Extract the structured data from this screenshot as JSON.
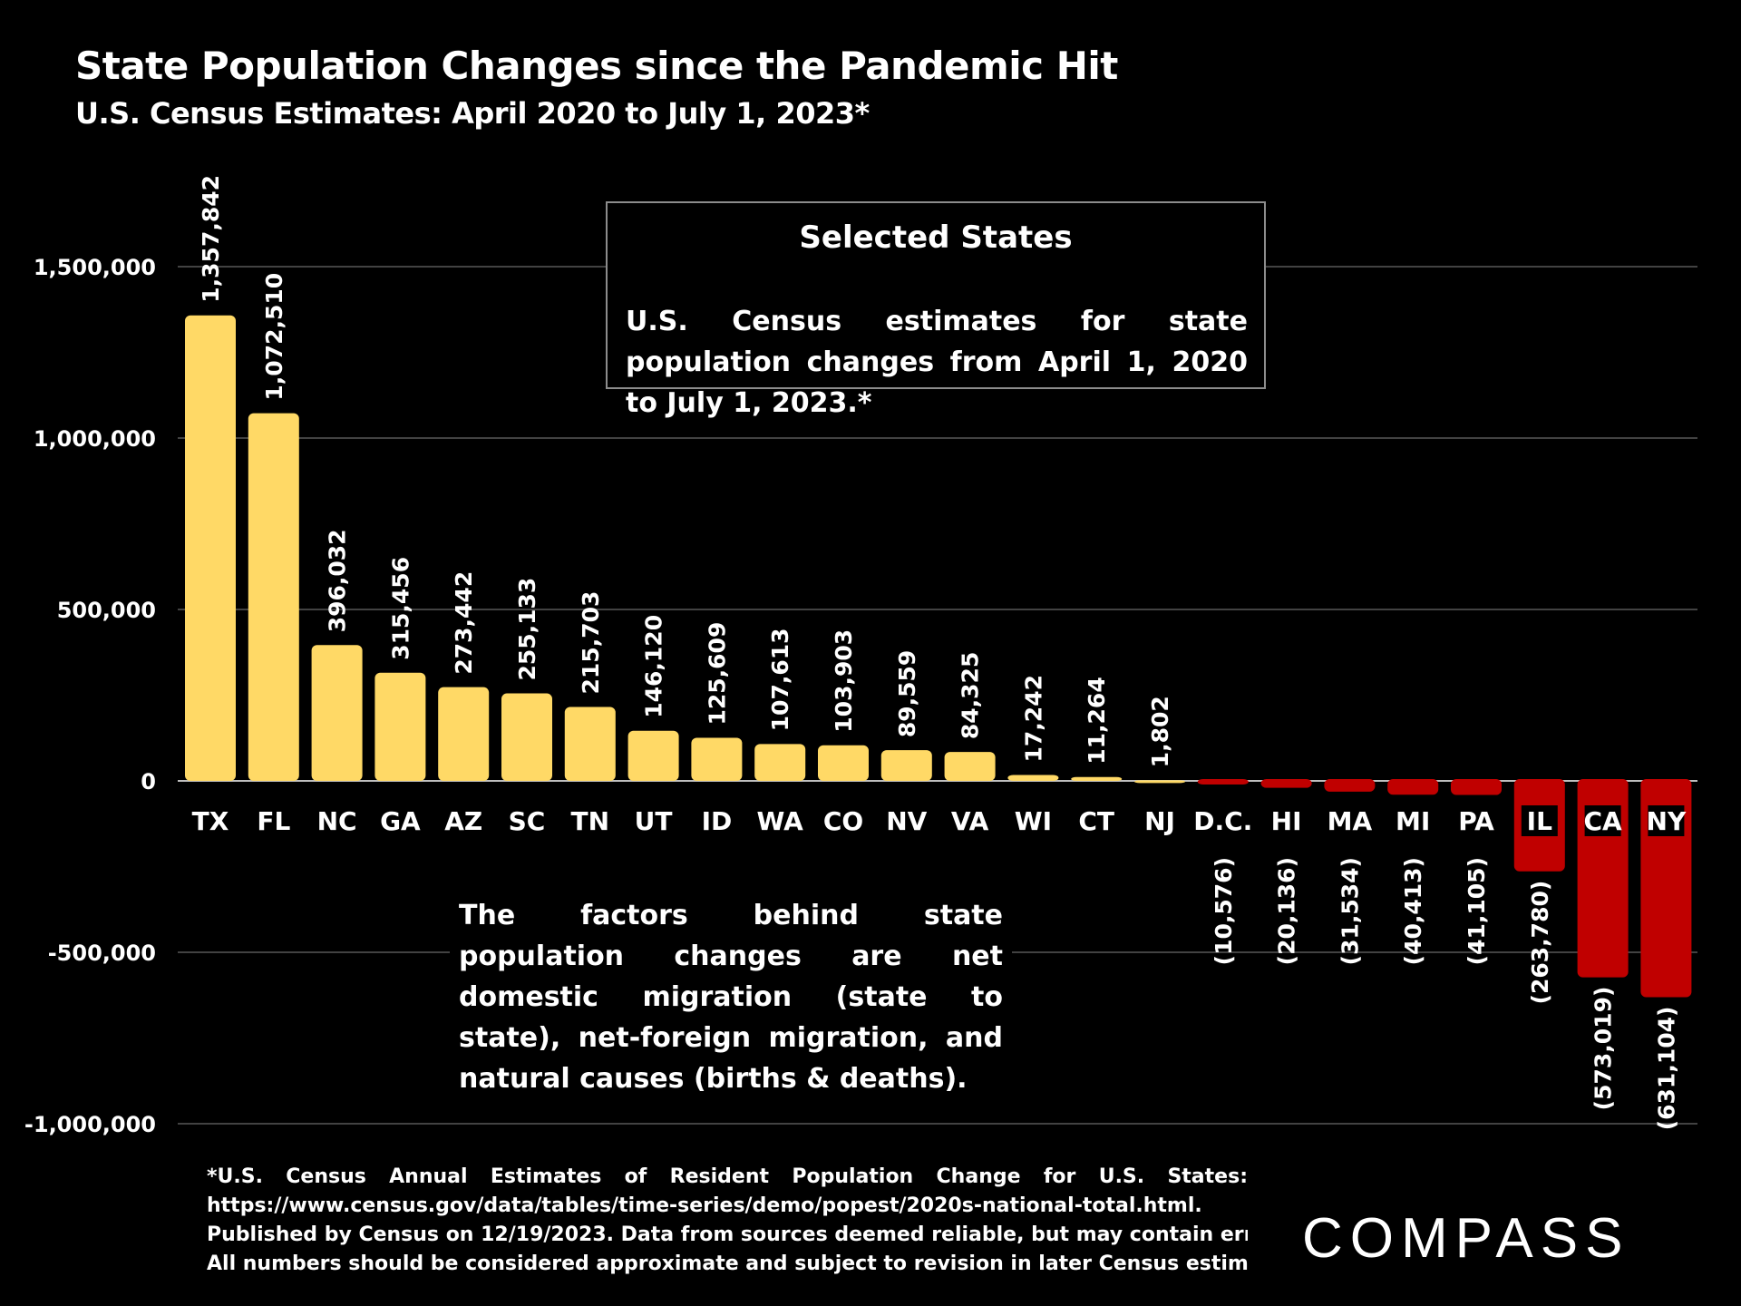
{
  "header": {
    "title": "State Population Changes since the Pandemic Hit",
    "subtitle": "U.S. Census Estimates: April 2020 to July 1, 2023*"
  },
  "callout": {
    "heading": "Selected States",
    "body": "U.S. Census estimates for state population changes from April 1, 2020 to July 1, 2023.*"
  },
  "note": "The factors behind state population changes are net domestic migration (state to state), net-foreign migration, and natural causes (births & deaths).",
  "footnote": {
    "lines": [
      "*U.S. Census Annual Estimates of Resident Population Change for U.S. States:",
      "https://www.census.gov/data/tables/time-series/demo/popest/2020s-national-total.html.",
      "Published by Census on 12/19/2023. Data from sources deemed reliable, but may contain errors.",
      "All numbers should be considered approximate and subject to revision in later Census estimates."
    ]
  },
  "logo": {
    "text": "COMPASS"
  },
  "colors": {
    "background": "#000000",
    "positive_bar": "#FFD966",
    "negative_bar": "#C00000",
    "gridline": "#595959",
    "text": "#FFFFFF"
  },
  "chart_data": {
    "type": "bar",
    "title": "State Population Changes since the Pandemic Hit",
    "subtitle": "U.S. Census Estimates: April 2020 to July 1, 2023*",
    "categories": [
      "TX",
      "FL",
      "NC",
      "GA",
      "AZ",
      "SC",
      "TN",
      "UT",
      "ID",
      "WA",
      "CO",
      "NV",
      "VA",
      "WI",
      "CT",
      "NJ",
      "D.C.",
      "HI",
      "MA",
      "MI",
      "PA",
      "IL",
      "CA",
      "NY"
    ],
    "values": [
      1357842,
      1072510,
      396032,
      315456,
      273442,
      255133,
      215703,
      146120,
      125609,
      107613,
      103903,
      89559,
      84325,
      17242,
      11264,
      1802,
      -10576,
      -20136,
      -31534,
      -40413,
      -41105,
      -263780,
      -573019,
      -631104
    ],
    "data_labels": [
      "1,357,842",
      "1,072,510",
      "396,032",
      "315,456",
      "273,442",
      "255,133",
      "215,703",
      "146,120",
      "125,609",
      "107,613",
      "103,903",
      "89,559",
      "84,325",
      "17,242",
      "11,264",
      "1,802",
      "(10,576)",
      "(20,136)",
      "(31,534)",
      "(40,413)",
      "(41,105)",
      "(263,780)",
      "(573,019)",
      "(631,104)"
    ],
    "ylim": [
      -1000000,
      1500000
    ],
    "yticks": [
      1500000,
      1000000,
      500000,
      0,
      -500000,
      -1000000
    ],
    "ytick_labels": [
      "1,500,000",
      "1,000,000",
      "500,000",
      "0",
      "-500,000",
      "-1,000,000"
    ],
    "xlabel": "",
    "ylabel": "",
    "grid": true,
    "legend": "none"
  }
}
